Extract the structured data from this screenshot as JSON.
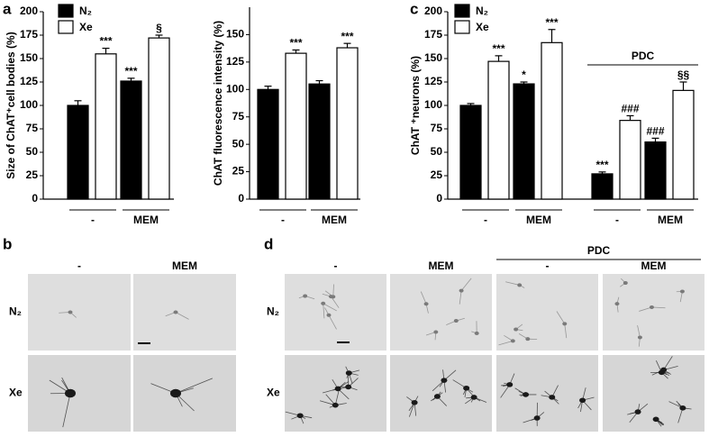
{
  "chart_data": [
    {
      "type": "bar",
      "panel": "a",
      "ylabel": "Size of ChAT⁺cell bodies (%)",
      "categories": [
        "-",
        "MEM"
      ],
      "ylim": [
        0,
        200
      ],
      "yticks": [
        0,
        25,
        50,
        75,
        100,
        125,
        150,
        175,
        200
      ],
      "series": [
        {
          "name": "N₂",
          "color": "#000000",
          "values": [
            100,
            126
          ],
          "errors": [
            5,
            3
          ],
          "annotations": [
            null,
            "***"
          ]
        },
        {
          "name": "Xe",
          "color": "#ffffff",
          "values": [
            155,
            172
          ],
          "errors": [
            6,
            3
          ],
          "annotations": [
            "***",
            "§"
          ]
        }
      ]
    },
    {
      "type": "bar",
      "ylabel": "ChAT fluorescence intensity (%)",
      "categories": [
        "-",
        "MEM"
      ],
      "ylim": [
        0,
        175
      ],
      "yticks": [
        0,
        25,
        50,
        75,
        100,
        125,
        150
      ],
      "series": [
        {
          "color": "#000000",
          "values": [
            100,
            105
          ],
          "errors": [
            3,
            3
          ],
          "annotations": [
            null,
            null
          ]
        },
        {
          "color": "#ffffff",
          "values": [
            133,
            138
          ],
          "errors": [
            3,
            4
          ],
          "annotations": [
            "***",
            "***"
          ]
        }
      ]
    },
    {
      "type": "bar",
      "panel": "c",
      "ylabel": "ChAT ⁺neurons (%)",
      "group_label": "PDC",
      "categories": [
        "-",
        "MEM",
        "-",
        "MEM"
      ],
      "ylim": [
        0,
        200
      ],
      "yticks": [
        0,
        25,
        50,
        75,
        100,
        125,
        150,
        175,
        200
      ],
      "series": [
        {
          "name": "N₂",
          "color": "#000000",
          "values": [
            100,
            123,
            27,
            61
          ],
          "errors": [
            2,
            2,
            2,
            4
          ],
          "annotations": [
            null,
            "*",
            "***",
            "###"
          ]
        },
        {
          "name": "Xe",
          "color": "#ffffff",
          "values": [
            147,
            167,
            84,
            116
          ],
          "errors": [
            6,
            14,
            5,
            9
          ],
          "annotations": [
            "***",
            "***",
            "###",
            "§§"
          ]
        }
      ]
    }
  ],
  "micrographs": [
    {
      "panel": "b",
      "columns": [
        "-",
        "MEM"
      ],
      "rows": [
        "N₂",
        "Xe"
      ]
    },
    {
      "panel": "d",
      "group_label": "PDC",
      "columns": [
        "-",
        "MEM",
        "-",
        "MEM"
      ],
      "rows": [
        "N₂",
        "Xe"
      ]
    }
  ]
}
